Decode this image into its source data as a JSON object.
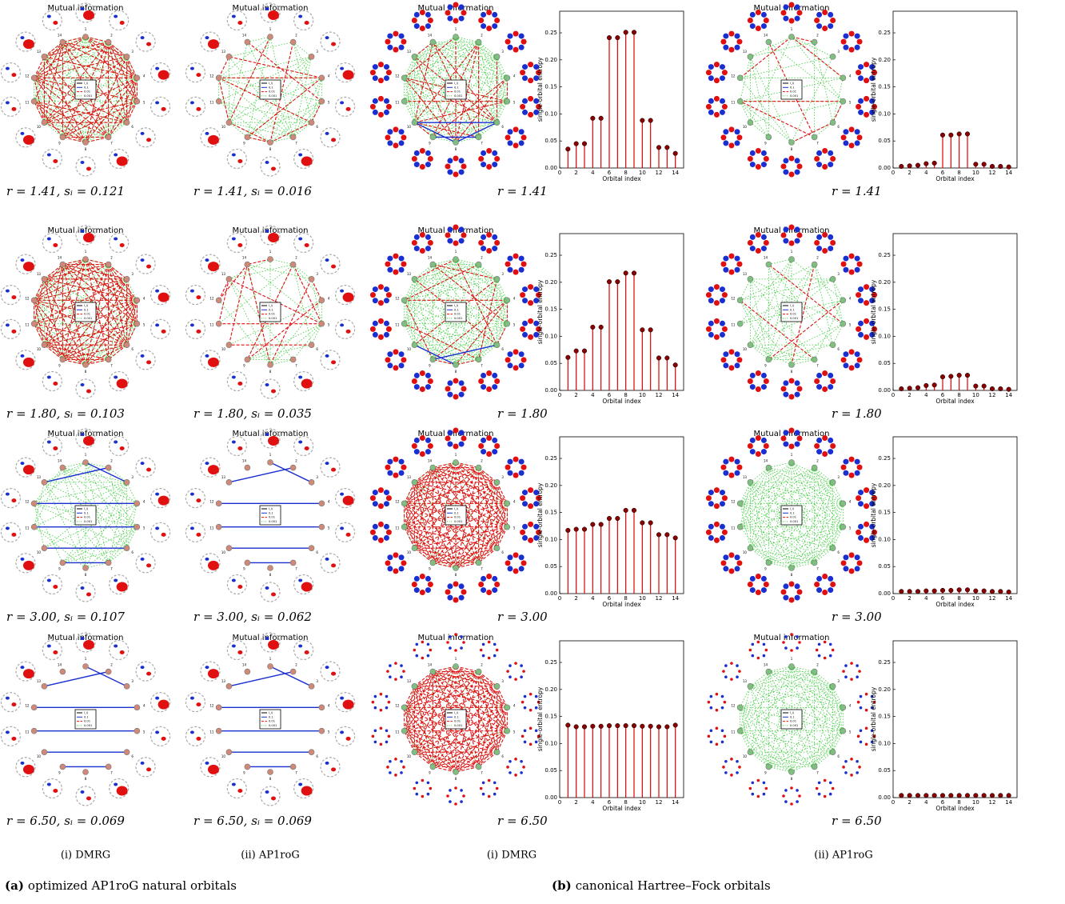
{
  "diagram_title": "Mutual information",
  "node_labels": [
    "1",
    "2",
    "3",
    "4",
    "5",
    "6",
    "7",
    "8",
    "9",
    "10",
    "11",
    "12",
    "13",
    "14"
  ],
  "legend_labels": [
    "I_ij",
    "0.1",
    "0.01",
    "0.001"
  ],
  "captions": [
    [
      "r = 1.41, sᵢ = 0.121",
      "r = 1.41, sᵢ = 0.016",
      "r = 1.41",
      "r = 1.41"
    ],
    [
      "r = 1.80, sᵢ = 0.103",
      "r = 1.80, sᵢ = 0.035",
      "r = 1.80",
      "r = 1.80"
    ],
    [
      "r = 3.00, sᵢ = 0.107",
      "r = 3.00, sᵢ = 0.062",
      "r = 3.00",
      "r = 3.00"
    ],
    [
      "r = 6.50, sᵢ = 0.069",
      "r = 6.50, sᵢ = 0.069",
      "r = 6.50",
      "r = 6.50"
    ]
  ],
  "column_labels": [
    "(i) DMRG",
    "(ii) AP1roG",
    "(i) DMRG",
    "(ii) AP1roG"
  ],
  "subfigure_labels": [
    {
      "letter": "(a)",
      "text": "optimized AP1roG natural orbitals"
    },
    {
      "letter": "(b)",
      "text": "canonical Hartree–Fock orbitals"
    }
  ],
  "chart_data": [
    {
      "type": "stem",
      "xlabel": "Orbital index",
      "ylabel": "single-orbital entropy",
      "color": "#e00000",
      "marker_color": "#8b0000",
      "categories": [
        1,
        2,
        3,
        4,
        5,
        6,
        7,
        8,
        9,
        10,
        11,
        12,
        13,
        14
      ],
      "values": [
        0.035,
        0.045,
        0.045,
        0.092,
        0.092,
        0.241,
        0.241,
        0.251,
        0.251,
        0.088,
        0.088,
        0.038,
        0.038,
        0.027
      ],
      "xlim": [
        0,
        15
      ],
      "ylim": [
        0,
        0.29
      ],
      "xticks": [
        0,
        2,
        4,
        6,
        8,
        10,
        12,
        14
      ],
      "yticks": [
        {
          "value": 0,
          "label": "0.00"
        },
        {
          "value": 0.05,
          "label": "0.05"
        },
        {
          "value": 0.1,
          "label": "0.10"
        },
        {
          "value": 0.15,
          "label": "0.15"
        },
        {
          "value": 0.2,
          "label": "0.20"
        },
        {
          "value": 0.25,
          "label": "0.25"
        }
      ]
    },
    {
      "type": "stem",
      "xlabel": "Orbital index",
      "ylabel": "single-orbital entropy",
      "color": "#e00000",
      "marker_color": "#8b0000",
      "categories": [
        1,
        2,
        3,
        4,
        5,
        6,
        7,
        8,
        9,
        10,
        11,
        12,
        13,
        14
      ],
      "values": [
        0.003,
        0.004,
        0.005,
        0.008,
        0.009,
        0.061,
        0.061,
        0.063,
        0.063,
        0.007,
        0.007,
        0.003,
        0.003,
        0.002
      ],
      "xlim": [
        0,
        15
      ],
      "ylim": [
        0,
        0.29
      ],
      "xticks": [
        0,
        2,
        4,
        6,
        8,
        10,
        12,
        14
      ],
      "yticks": [
        {
          "value": 0,
          "label": "0.00"
        },
        {
          "value": 0.05,
          "label": "0.05"
        },
        {
          "value": 0.1,
          "label": "0.10"
        },
        {
          "value": 0.15,
          "label": "0.15"
        },
        {
          "value": 0.2,
          "label": "0.20"
        },
        {
          "value": 0.25,
          "label": "0.25"
        }
      ]
    },
    {
      "type": "stem",
      "xlabel": "Orbital index",
      "ylabel": "single-orbital entropy",
      "color": "#e00000",
      "marker_color": "#8b0000",
      "categories": [
        1,
        2,
        3,
        4,
        5,
        6,
        7,
        8,
        9,
        10,
        11,
        12,
        13,
        14
      ],
      "values": [
        0.061,
        0.073,
        0.073,
        0.117,
        0.117,
        0.201,
        0.201,
        0.217,
        0.217,
        0.112,
        0.112,
        0.06,
        0.06,
        0.047
      ],
      "xlim": [
        0,
        15
      ],
      "ylim": [
        0,
        0.29
      ],
      "xticks": [
        0,
        2,
        4,
        6,
        8,
        10,
        12,
        14
      ],
      "yticks": [
        {
          "value": 0,
          "label": "0.00"
        },
        {
          "value": 0.05,
          "label": "0.05"
        },
        {
          "value": 0.1,
          "label": "0.10"
        },
        {
          "value": 0.15,
          "label": "0.15"
        },
        {
          "value": 0.2,
          "label": "0.20"
        },
        {
          "value": 0.25,
          "label": "0.25"
        }
      ]
    },
    {
      "type": "stem",
      "xlabel": "Orbital index",
      "ylabel": "single-orbital entropy",
      "color": "#e00000",
      "marker_color": "#8b0000",
      "categories": [
        1,
        2,
        3,
        4,
        5,
        6,
        7,
        8,
        9,
        10,
        11,
        12,
        13,
        14
      ],
      "values": [
        0.003,
        0.004,
        0.005,
        0.009,
        0.01,
        0.025,
        0.026,
        0.028,
        0.028,
        0.008,
        0.008,
        0.003,
        0.003,
        0.002
      ],
      "xlim": [
        0,
        15
      ],
      "ylim": [
        0,
        0.29
      ],
      "xticks": [
        0,
        2,
        4,
        6,
        8,
        10,
        12,
        14
      ],
      "yticks": [
        {
          "value": 0,
          "label": "0.00"
        },
        {
          "value": 0.05,
          "label": "0.05"
        },
        {
          "value": 0.1,
          "label": "0.10"
        },
        {
          "value": 0.15,
          "label": "0.15"
        },
        {
          "value": 0.2,
          "label": "0.20"
        },
        {
          "value": 0.25,
          "label": "0.25"
        }
      ]
    },
    {
      "type": "stem",
      "xlabel": "Orbital index",
      "ylabel": "single-orbital entropy",
      "color": "#e00000",
      "marker_color": "#8b0000",
      "categories": [
        1,
        2,
        3,
        4,
        5,
        6,
        7,
        8,
        9,
        10,
        11,
        12,
        13,
        14
      ],
      "values": [
        0.117,
        0.119,
        0.119,
        0.128,
        0.128,
        0.139,
        0.139,
        0.154,
        0.154,
        0.131,
        0.131,
        0.109,
        0.109,
        0.103
      ],
      "xlim": [
        0,
        15
      ],
      "ylim": [
        0,
        0.29
      ],
      "xticks": [
        0,
        2,
        4,
        6,
        8,
        10,
        12,
        14
      ],
      "yticks": [
        {
          "value": 0,
          "label": "0.00"
        },
        {
          "value": 0.05,
          "label": "0.05"
        },
        {
          "value": 0.1,
          "label": "0.10"
        },
        {
          "value": 0.15,
          "label": "0.15"
        },
        {
          "value": 0.2,
          "label": "0.20"
        },
        {
          "value": 0.25,
          "label": "0.25"
        }
      ]
    },
    {
      "type": "stem",
      "xlabel": "Orbital index",
      "ylabel": "single-orbital entropy",
      "color": "#e00000",
      "marker_color": "#8b0000",
      "categories": [
        1,
        2,
        3,
        4,
        5,
        6,
        7,
        8,
        9,
        10,
        11,
        12,
        13,
        14
      ],
      "values": [
        0.004,
        0.004,
        0.004,
        0.005,
        0.005,
        0.006,
        0.006,
        0.007,
        0.007,
        0.005,
        0.005,
        0.004,
        0.004,
        0.003
      ],
      "xlim": [
        0,
        15
      ],
      "ylim": [
        0,
        0.29
      ],
      "xticks": [
        0,
        2,
        4,
        6,
        8,
        10,
        12,
        14
      ],
      "yticks": [
        {
          "value": 0,
          "label": "0.00"
        },
        {
          "value": 0.05,
          "label": "0.05"
        },
        {
          "value": 0.1,
          "label": "0.10"
        },
        {
          "value": 0.15,
          "label": "0.15"
        },
        {
          "value": 0.2,
          "label": "0.20"
        },
        {
          "value": 0.25,
          "label": "0.25"
        }
      ]
    },
    {
      "type": "stem",
      "xlabel": "Orbital index",
      "ylabel": "single-orbital entropy",
      "color": "#e00000",
      "marker_color": "#8b0000",
      "categories": [
        1,
        2,
        3,
        4,
        5,
        6,
        7,
        8,
        9,
        10,
        11,
        12,
        13,
        14
      ],
      "values": [
        0.134,
        0.131,
        0.131,
        0.132,
        0.132,
        0.133,
        0.133,
        0.133,
        0.133,
        0.132,
        0.132,
        0.131,
        0.131,
        0.134
      ],
      "xlim": [
        0,
        15
      ],
      "ylim": [
        0,
        0.29
      ],
      "xticks": [
        0,
        2,
        4,
        6,
        8,
        10,
        12,
        14
      ],
      "yticks": [
        {
          "value": 0,
          "label": "0.00"
        },
        {
          "value": 0.05,
          "label": "0.05"
        },
        {
          "value": 0.1,
          "label": "0.10"
        },
        {
          "value": 0.15,
          "label": "0.15"
        },
        {
          "value": 0.2,
          "label": "0.20"
        },
        {
          "value": 0.25,
          "label": "0.25"
        }
      ]
    },
    {
      "type": "stem",
      "xlabel": "Orbital index",
      "ylabel": "single-orbital entropy",
      "color": "#e00000",
      "marker_color": "#8b0000",
      "categories": [
        1,
        2,
        3,
        4,
        5,
        6,
        7,
        8,
        9,
        10,
        11,
        12,
        13,
        14
      ],
      "values": [
        0.004,
        0.004,
        0.004,
        0.004,
        0.004,
        0.004,
        0.004,
        0.004,
        0.004,
        0.004,
        0.004,
        0.004,
        0.004,
        0.004
      ],
      "xlim": [
        0,
        15
      ],
      "ylim": [
        0,
        0.29
      ],
      "xticks": [
        0,
        2,
        4,
        6,
        8,
        10,
        12,
        14
      ],
      "yticks": [
        {
          "value": 0,
          "label": "0.00"
        },
        {
          "value": 0.05,
          "label": "0.05"
        },
        {
          "value": 0.1,
          "label": "0.10"
        },
        {
          "value": 0.15,
          "label": "0.15"
        },
        {
          "value": 0.2,
          "label": "0.20"
        },
        {
          "value": 0.25,
          "label": "0.25"
        }
      ]
    }
  ]
}
